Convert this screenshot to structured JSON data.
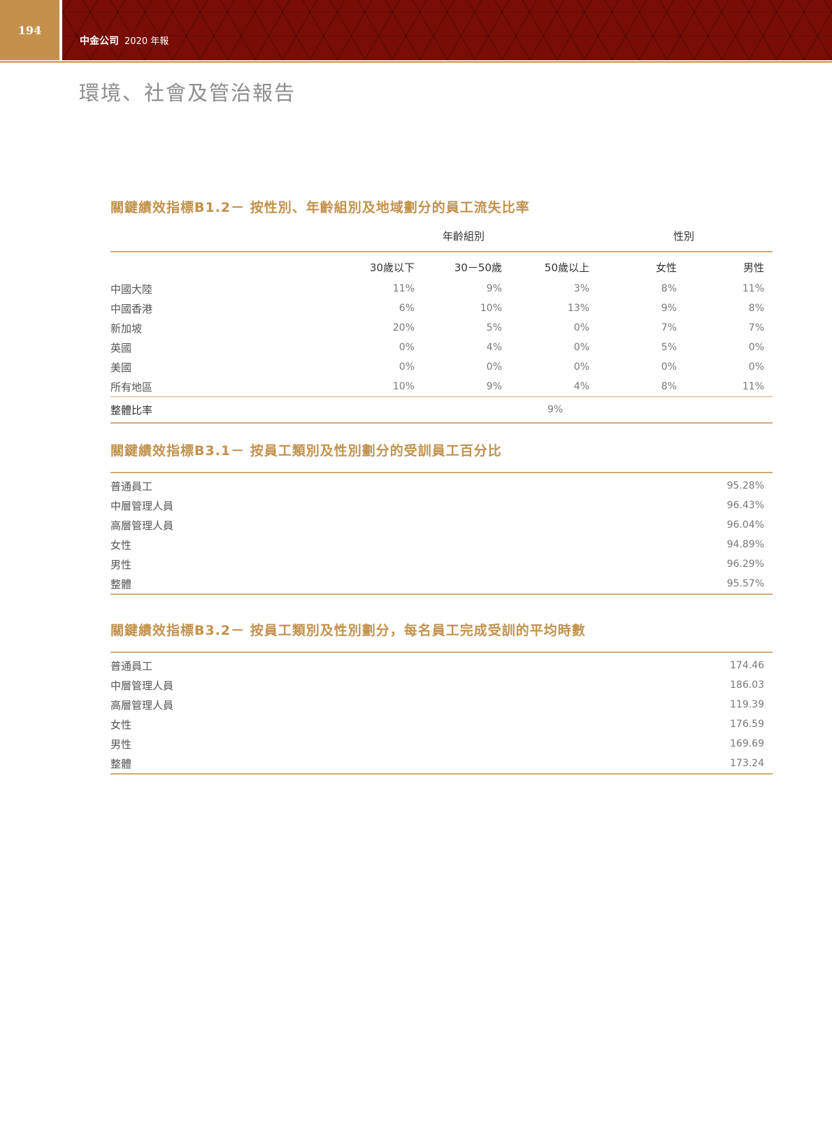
{
  "header": {
    "page_number": "194",
    "company": "中金公司",
    "year_label": "2020 年報"
  },
  "page_title": "環境、社會及管治報告",
  "b12": {
    "title": "關鍵績效指標B1.2－ 按性別、年齡組別及地域劃分的員工流失比率",
    "group_age": "年齡組別",
    "group_gender": "性別",
    "columns": [
      "30歲以下",
      "30－50歲",
      "50歲以上",
      "女性",
      "男性"
    ],
    "rows": [
      {
        "label": "中國大陸",
        "values": [
          "11%",
          "9%",
          "3%",
          "8%",
          "11%"
        ]
      },
      {
        "label": "中國香港",
        "values": [
          "6%",
          "10%",
          "13%",
          "9%",
          "8%"
        ]
      },
      {
        "label": "新加坡",
        "values": [
          "20%",
          "5%",
          "0%",
          "7%",
          "7%"
        ]
      },
      {
        "label": "英國",
        "values": [
          "0%",
          "4%",
          "0%",
          "5%",
          "0%"
        ]
      },
      {
        "label": "美國",
        "values": [
          "0%",
          "0%",
          "0%",
          "0%",
          "0%"
        ]
      },
      {
        "label": "所有地區",
        "values": [
          "10%",
          "9%",
          "4%",
          "8%",
          "11%"
        ]
      }
    ],
    "overall_label": "整體比率",
    "overall_value": "9%"
  },
  "b31": {
    "title": "關鍵績效指標B3.1－ 按員工類別及性別劃分的受訓員工百分比",
    "rows": [
      {
        "label": "普通員工",
        "value": "95.28%"
      },
      {
        "label": "中層管理人員",
        "value": "96.43%"
      },
      {
        "label": "高層管理人員",
        "value": "96.04%"
      },
      {
        "label": "女性",
        "value": "94.89%"
      },
      {
        "label": "男性",
        "value": "96.29%"
      },
      {
        "label": "整體",
        "value": "95.57%"
      }
    ]
  },
  "b32": {
    "title": "關鍵績效指標B3.2－ 按員工類別及性別劃分，每名員工完成受訓的平均時數",
    "rows": [
      {
        "label": "普通員工",
        "value": "174.46"
      },
      {
        "label": "中層管理人員",
        "value": "186.03"
      },
      {
        "label": "高層管理人員",
        "value": "119.39"
      },
      {
        "label": "女性",
        "value": "176.59"
      },
      {
        "label": "男性",
        "value": "169.69"
      },
      {
        "label": "整體",
        "value": "173.24"
      }
    ]
  }
}
